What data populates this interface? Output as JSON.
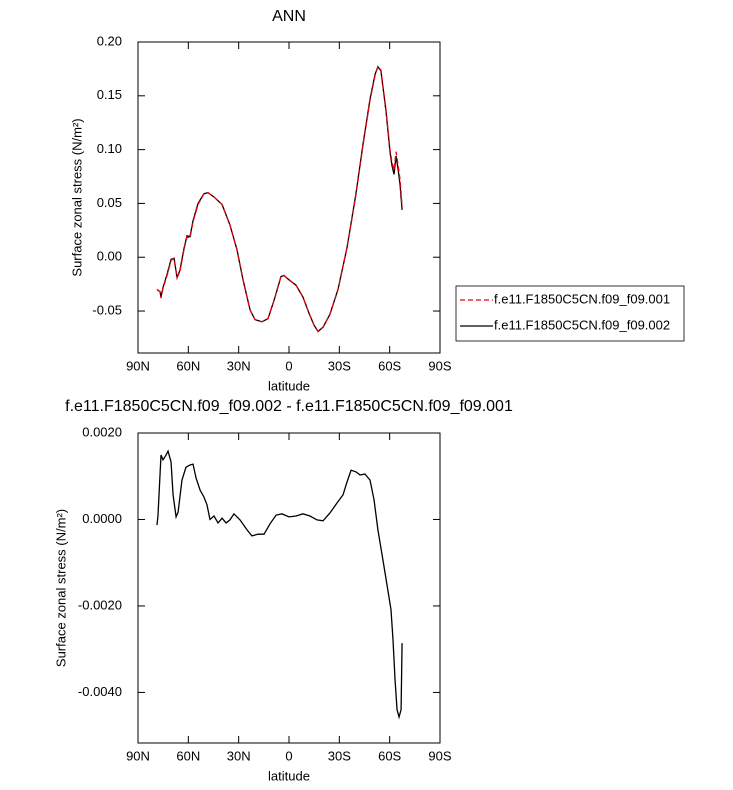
{
  "chart_data": [
    {
      "type": "line",
      "title": "ANN",
      "xlabel": "latitude",
      "ylabel": "Surface zonal stress (N/m²)",
      "xlim": [
        90,
        -90
      ],
      "xticks": [
        {
          "value": 90,
          "label": "90N"
        },
        {
          "value": 60,
          "label": "60N"
        },
        {
          "value": 30,
          "label": "30N"
        },
        0,
        {
          "value": -30,
          "label": "30S"
        },
        {
          "value": -60,
          "label": "60S"
        },
        {
          "value": -90,
          "label": "90S"
        }
      ],
      "ylim": [
        -0.089,
        0.2
      ],
      "yticks": [
        {
          "value": 0.2,
          "label": "0.20"
        },
        0.15,
        {
          "value": 0.1,
          "label": "0.10"
        },
        0.05,
        {
          "value": 0,
          "label": "0.00"
        },
        -0.05
      ],
      "legend": "right",
      "x": [
        78.7,
        76.9,
        76.3,
        75.1,
        72.7,
        70.3,
        68.5,
        66.7,
        65,
        62.6,
        60.8,
        59,
        57.2,
        54.2,
        50.7,
        48.3,
        44.7,
        39.9,
        35.2,
        31,
        27.4,
        23.2,
        20.3,
        16.1,
        12.5,
        8.9,
        4.8,
        3,
        0,
        -4.2,
        -8.3,
        -11.9,
        -14.9,
        -17.3,
        -20.3,
        -24.4,
        -29.2,
        -34.6,
        -39.9,
        -44.1,
        -48.3,
        -51.3,
        -53,
        -54.8,
        -57.8,
        -60.2,
        -61.4,
        -62.6,
        -63.8,
        -65,
        -66.2,
        -67.4
      ],
      "series": [
        {
          "name": "f.e11.F1850C5CN.f09_f09.001",
          "color": "#e8000b",
          "style": "dashed",
          "values": [
            -0.03,
            -0.032,
            -0.038,
            -0.029,
            -0.017,
            -0.003,
            -0.001,
            -0.019,
            -0.013,
            0.007,
            0.019,
            0.018,
            0.033,
            0.049,
            0.059,
            0.06,
            0.056,
            0.049,
            0.03,
            0.007,
            -0.021,
            -0.049,
            -0.058,
            -0.06,
            -0.057,
            -0.04,
            -0.018,
            -0.017,
            -0.021,
            -0.026,
            -0.037,
            -0.052,
            -0.063,
            -0.069,
            -0.065,
            -0.053,
            -0.03,
            0.009,
            0.058,
            0.104,
            0.146,
            0.169,
            0.177,
            0.174,
            0.137,
            0.1,
            0.088,
            0.081,
            0.098,
            0.086,
            0.072,
            0.047
          ]
        },
        {
          "name": "f.e11.F1850C5CN.f09_f09.002",
          "color": "#000000",
          "style": "solid",
          "values": [
            -0.03,
            -0.032,
            -0.037,
            -0.028,
            -0.016,
            -0.002,
            -0.001,
            -0.019,
            -0.012,
            0.008,
            0.02,
            0.019,
            0.034,
            0.05,
            0.059,
            0.06,
            0.056,
            0.049,
            0.03,
            0.007,
            -0.021,
            -0.049,
            -0.058,
            -0.06,
            -0.057,
            -0.04,
            -0.018,
            -0.017,
            -0.021,
            -0.026,
            -0.037,
            -0.052,
            -0.063,
            -0.069,
            -0.065,
            -0.053,
            -0.03,
            0.009,
            0.059,
            0.105,
            0.147,
            0.17,
            0.177,
            0.173,
            0.136,
            0.098,
            0.085,
            0.077,
            0.094,
            0.082,
            0.067,
            0.044
          ]
        }
      ]
    },
    {
      "type": "line",
      "title": "f.e11.F1850C5CN.f09_f09.002 - f.e11.F1850C5CN.f09_f09.001",
      "xlabel": "latitude",
      "ylabel": "Surface zonal stress (N/m²)",
      "xlim": [
        90,
        -90
      ],
      "xticks": [
        {
          "value": 90,
          "label": "90N"
        },
        {
          "value": 60,
          "label": "60N"
        },
        {
          "value": 30,
          "label": "30N"
        },
        0,
        {
          "value": -30,
          "label": "30S"
        },
        {
          "value": -60,
          "label": "60S"
        },
        {
          "value": -90,
          "label": "90S"
        }
      ],
      "ylim": [
        -0.00517,
        0.002
      ],
      "yticks": [
        {
          "value": 0.002,
          "label": "0.0020"
        },
        {
          "value": 0,
          "label": "0.0000"
        },
        {
          "value": -0.002,
          "label": "-0.0020"
        },
        {
          "value": -0.004,
          "label": "-0.0040"
        }
      ],
      "color": "#000000",
      "x": [
        78.7,
        78.1,
        76.3,
        75.1,
        73.3,
        72.1,
        70.3,
        69.1,
        67.3,
        66.1,
        63.8,
        61.4,
        59,
        57.2,
        55.4,
        53,
        50.7,
        48.9,
        47.1,
        44.7,
        42.3,
        39.9,
        37.5,
        35.2,
        32.8,
        29.2,
        25,
        22.1,
        18.5,
        14.9,
        11.3,
        7.7,
        4.2,
        0,
        -4.2,
        -8.3,
        -12.5,
        -16.7,
        -20.3,
        -24.4,
        -28.6,
        -32.2,
        -34.6,
        -37,
        -39.9,
        -42.3,
        -45.3,
        -48.3,
        -50.7,
        -53,
        -56,
        -58.4,
        -60.8,
        -62,
        -63.2,
        -64.4,
        -65.6,
        -66.8,
        -67.4
      ],
      "values": [
        -0.00013,
        8e-05,
        0.00149,
        0.00138,
        0.00149,
        0.00158,
        0.00133,
        0.00057,
        6e-05,
        0.00017,
        0.00091,
        0.00121,
        0.00126,
        0.00128,
        0.00096,
        0.00068,
        0.00052,
        0.00034,
        0.0,
        8e-05,
        -8e-05,
        3e-05,
        -8e-05,
        -1e-05,
        0.00013,
        -1e-05,
        -0.00024,
        -0.00038,
        -0.00034,
        -0.00034,
        -0.0001,
        0.0001,
        0.00013,
        6e-05,
        8e-05,
        0.00013,
        8e-05,
        -1e-05,
        -3e-05,
        0.00015,
        0.00038,
        0.00057,
        0.00087,
        0.00114,
        0.0011,
        0.00103,
        0.00105,
        0.00091,
        0.00045,
        -0.00024,
        -0.00094,
        -0.00151,
        -0.00209,
        -0.00279,
        -0.00371,
        -0.0044,
        -0.00457,
        -0.0044,
        -0.00286
      ]
    }
  ]
}
